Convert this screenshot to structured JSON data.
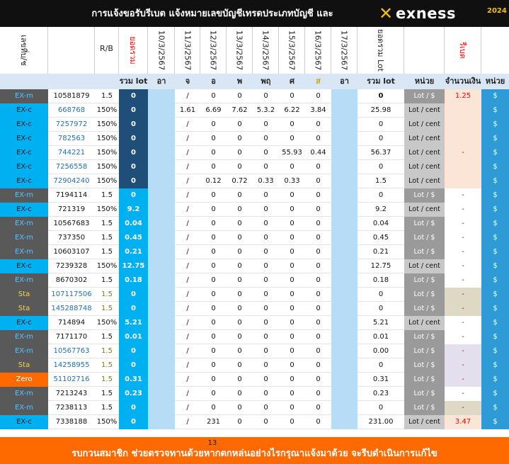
{
  "header": {
    "title": "การแจ้งขอรับรีเบต  แจ้งหมายเลขบัญชีเทรดประเภทบัญชี และ",
    "logo_text": "exness",
    "year": "2024"
  },
  "column_headers": {
    "account": "เลขที่บ/ช",
    "rb": "R/B",
    "total": "ยอดรวม",
    "dates": [
      "10/3/2567",
      "11/3/2567",
      "12/3/2567",
      "13/3/2567",
      "14/3/2567",
      "15/3/2567",
      "16/3/2567",
      "17/3/2567"
    ],
    "total_lot": "ยอดรวม Lot",
    "rebate": "รีเบต"
  },
  "sub_headers": {
    "total_lot": "รวม lot",
    "days": [
      "อา",
      "จ",
      "อ",
      "พ",
      "พฤ",
      "ศ",
      "ส",
      "อา"
    ],
    "total_lot2": "รวม lot",
    "unit": "หน่วย",
    "amount": "จำนวนเงิน",
    "unit2": "หน่วย"
  },
  "colors": {
    "ex_m": "#595959",
    "ex_c": "#00b0f0",
    "sta": "#595959",
    "zero": "#ff6a00",
    "total_bg": "#00b0f0",
    "total_bg_alt": "#1f4e79",
    "accent_orange": "#ff6a00",
    "header_bg": "#101010",
    "rebate_red": "#ff0000"
  },
  "rows": [
    {
      "type": "EX-m",
      "acc": "10581879",
      "rb": "1.5",
      "total": "0",
      "d10": "",
      "d11": "/",
      "d12": "0",
      "d13": "0",
      "d14": "0",
      "d15": "0",
      "d16": "0",
      "d17": "",
      "sum": "0",
      "unit": "Lot / $",
      "amount": "1.25",
      "cur": "$"
    },
    {
      "type": "EX-c",
      "acc": "668768",
      "rb": "150%",
      "total": "0",
      "d10": "",
      "d11": "1.61",
      "d12": "6.69",
      "d13": "7.62",
      "d14": "5.3.2",
      "d15": "6.22",
      "d16": "3.84",
      "d17": "",
      "sum": "25.98",
      "unit": "Lot / cent",
      "amount": "",
      "cur": "$"
    },
    {
      "type": "EX-c",
      "acc": "7257972",
      "rb": "150%",
      "total": "0",
      "d10": "",
      "d11": "/",
      "d12": "0",
      "d13": "0",
      "d14": "0",
      "d15": "0",
      "d16": "0",
      "d17": "",
      "sum": "0",
      "unit": "Lot / cent",
      "amount": "",
      "cur": "$"
    },
    {
      "type": "EX-c",
      "acc": "782563",
      "rb": "150%",
      "total": "0",
      "d10": "",
      "d11": "/",
      "d12": "0",
      "d13": "0",
      "d14": "0",
      "d15": "0",
      "d16": "0",
      "d17": "",
      "sum": "0",
      "unit": "Lot / cent",
      "amount": "",
      "cur": "$"
    },
    {
      "type": "EX-c",
      "acc": "744221",
      "rb": "150%",
      "total": "0",
      "d10": "",
      "d11": "/",
      "d12": "0",
      "d13": "0",
      "d14": "0",
      "d15": "55.93",
      "d16": "0.44",
      "d17": "",
      "sum": "56.37",
      "unit": "Lot / cent",
      "amount": "-",
      "cur": "$"
    },
    {
      "type": "EX-c",
      "acc": "7256558",
      "rb": "150%",
      "total": "0",
      "d10": "",
      "d11": "/",
      "d12": "0",
      "d13": "0",
      "d14": "0",
      "d15": "0",
      "d16": "0",
      "d17": "",
      "sum": "0",
      "unit": "Lot / cent",
      "amount": "",
      "cur": "$"
    },
    {
      "type": "EX-c",
      "acc": "72904240",
      "rb": "150%",
      "total": "0",
      "d10": "",
      "d11": "/",
      "d12": "0.12",
      "d13": "0.72",
      "d14": "0.33",
      "d15": "0.33",
      "d16": "0",
      "d17": "",
      "sum": "1.5",
      "unit": "Lot / cent",
      "amount": "",
      "cur": "$"
    },
    {
      "type": "EX-m",
      "acc": "7194114",
      "rb": "1.5",
      "total": "0",
      "d10": "",
      "d11": "/",
      "d12": "0",
      "d13": "0",
      "d14": "0",
      "d15": "0",
      "d16": "0",
      "d17": "",
      "sum": "0",
      "unit": "Lot / $",
      "amount": "-",
      "cur": "$"
    },
    {
      "type": "EX-c",
      "acc": "721319",
      "rb": "150%",
      "total": "9.2",
      "d10": "",
      "d11": "/",
      "d12": "0",
      "d13": "0",
      "d14": "0",
      "d15": "0",
      "d16": "0",
      "d17": "",
      "sum": "9.2",
      "unit": "Lot / cent",
      "amount": "-",
      "cur": "$"
    },
    {
      "type": "EX-m",
      "acc": "10567683",
      "rb": "1.5",
      "total": "0.04",
      "d10": "",
      "d11": "/",
      "d12": "0",
      "d13": "0",
      "d14": "0",
      "d15": "0",
      "d16": "0",
      "d17": "",
      "sum": "0.04",
      "unit": "Lot / $",
      "amount": "-",
      "cur": "$"
    },
    {
      "type": "EX-m",
      "acc": "737350",
      "rb": "1.5",
      "total": "0.45",
      "d10": "",
      "d11": "/",
      "d12": "0",
      "d13": "0",
      "d14": "0",
      "d15": "0",
      "d16": "0",
      "d17": "",
      "sum": "0.45",
      "unit": "Lot / $",
      "amount": "-",
      "cur": "$"
    },
    {
      "type": "EX-m",
      "acc": "10603107",
      "rb": "1.5",
      "total": "0.21",
      "d10": "",
      "d11": "/",
      "d12": "0",
      "d13": "0",
      "d14": "0",
      "d15": "0",
      "d16": "0",
      "d17": "",
      "sum": "0.21",
      "unit": "Lot / $",
      "amount": "-",
      "cur": "$"
    },
    {
      "type": "EX-c",
      "acc": "7239328",
      "rb": "150%",
      "total": "12.75",
      "d10": "",
      "d11": "/",
      "d12": "0",
      "d13": "0",
      "d14": "0",
      "d15": "0",
      "d16": "0",
      "d17": "",
      "sum": "12.75",
      "unit": "Lot / cent",
      "amount": "-",
      "cur": "$"
    },
    {
      "type": "EX-m",
      "acc": "8670302",
      "rb": "1.5",
      "total": "0.18",
      "d10": "",
      "d11": "/",
      "d12": "0",
      "d13": "0",
      "d14": "0",
      "d15": "0",
      "d16": "0",
      "d17": "",
      "sum": "0.18",
      "unit": "Lot / $",
      "amount": "-",
      "cur": "$"
    },
    {
      "type": "Sta",
      "acc": "107117506",
      "rb": "1.5",
      "total": "0",
      "d10": "",
      "d11": "/",
      "d12": "0",
      "d13": "0",
      "d14": "0",
      "d15": "0",
      "d16": "0",
      "d17": "",
      "sum": "0",
      "unit": "Lot / $",
      "amount": "-",
      "cur": "$"
    },
    {
      "type": "Sta",
      "acc": "145288748",
      "rb": "1.5",
      "total": "0",
      "d10": "",
      "d11": "/",
      "d12": "0",
      "d13": "0",
      "d14": "0",
      "d15": "0",
      "d16": "0",
      "d17": "",
      "sum": "0",
      "unit": "Lot / $",
      "amount": "-",
      "cur": "$"
    },
    {
      "type": "EX-c",
      "acc": "714894",
      "rb": "150%",
      "total": "5.21",
      "d10": "",
      "d11": "/",
      "d12": "0",
      "d13": "0",
      "d14": "0",
      "d15": "0",
      "d16": "0",
      "d17": "",
      "sum": "5.21",
      "unit": "Lot / cent",
      "amount": "-",
      "cur": "$"
    },
    {
      "type": "EX-m",
      "acc": "7171170",
      "rb": "1.5",
      "total": "0.01",
      "d10": "",
      "d11": "/",
      "d12": "0",
      "d13": "0",
      "d14": "0",
      "d15": "0",
      "d16": "0",
      "d17": "",
      "sum": "0.01",
      "unit": "Lot / $",
      "amount": "-",
      "cur": "$"
    },
    {
      "type": "EX-m",
      "acc": "10567763",
      "rb": "1.5",
      "total": "0",
      "d10": "",
      "d11": "/",
      "d12": "0",
      "d13": "0",
      "d14": "0",
      "d15": "0",
      "d16": "0",
      "d17": "",
      "sum": "0.00",
      "unit": "Lot / $",
      "amount": "-",
      "cur": "$"
    },
    {
      "type": "Sta",
      "acc": "14258955",
      "rb": "1.5",
      "total": "0",
      "d10": "",
      "d11": "/",
      "d12": "0",
      "d13": "0",
      "d14": "0",
      "d15": "0",
      "d16": "0",
      "d17": "",
      "sum": "0",
      "unit": "Lot / $",
      "amount": "-",
      "cur": "$"
    },
    {
      "type": "Zero",
      "acc": "51102716",
      "rb": "1.5",
      "total": "0.31",
      "d10": "",
      "d11": "/",
      "d12": "0",
      "d13": "0",
      "d14": "0",
      "d15": "0",
      "d16": "0",
      "d17": "",
      "sum": "0.31",
      "unit": "Lot / $",
      "amount": "-",
      "cur": "$"
    },
    {
      "type": "EX-m",
      "acc": "7213243",
      "rb": "1.5",
      "total": "0.23",
      "d10": "",
      "d11": "/",
      "d12": "0",
      "d13": "0",
      "d14": "0",
      "d15": "0",
      "d16": "0",
      "d17": "",
      "sum": "0.23",
      "unit": "Lot / $",
      "amount": "-",
      "cur": "$"
    },
    {
      "type": "EX-m",
      "acc": "7238113",
      "rb": "1.5",
      "total": "0",
      "d10": "",
      "d11": "/",
      "d12": "0",
      "d13": "0",
      "d14": "0",
      "d15": "0",
      "d16": "0",
      "d17": "",
      "sum": "0",
      "unit": "Lot / $",
      "amount": "-",
      "cur": "$"
    },
    {
      "type": "EX-c",
      "acc": "7338188",
      "rb": "150%",
      "total": "0",
      "d10": "",
      "d11": "/",
      "d12": "231",
      "d13": "0",
      "d14": "0",
      "d15": "0",
      "d16": "0",
      "d17": "",
      "sum": "231.00",
      "unit": "Lot / cent",
      "amount": "3.47",
      "cur": "$"
    }
  ],
  "footer": {
    "page_number": "13",
    "text": "รบกวนสมาชิก ช่วยตรวจทานด้วยหากตกหล่นอย่างไรกรุณาแจ้งมาด้วย จะรีบดำเนินการแก้ไข"
  }
}
